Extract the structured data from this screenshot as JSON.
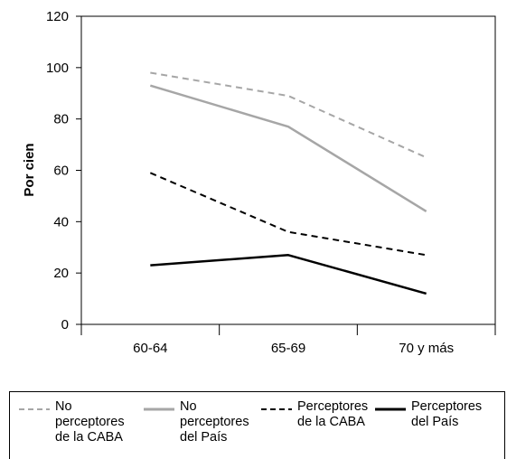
{
  "chart_data": {
    "type": "line",
    "categories": [
      "60-64",
      "65-69",
      "70 y más"
    ],
    "ylabel": "Por cien",
    "xlabel": "",
    "ylim": [
      0,
      120
    ],
    "yticks": [
      "0",
      "20",
      "40",
      "60",
      "80",
      "100",
      "120"
    ],
    "grid": false,
    "legend_position": "bottom",
    "series": [
      {
        "name": "No perceptores de la CABA",
        "values": [
          98,
          89,
          65
        ],
        "color": "#a6a6a6",
        "style": "dashed"
      },
      {
        "name": "No perceptores del País",
        "values": [
          93,
          77,
          44
        ],
        "color": "#a6a6a6",
        "style": "solid"
      },
      {
        "name": "Perceptores de la CABA",
        "values": [
          59,
          36,
          27
        ],
        "color": "#000000",
        "style": "dashed"
      },
      {
        "name": "Perceptores del País",
        "values": [
          23,
          27,
          12
        ],
        "color": "#000000",
        "style": "solid"
      }
    ]
  },
  "legend": {
    "items": [
      {
        "label": "No\nperceptores\nde la CABA"
      },
      {
        "label": "No\nperceptores\ndel País"
      },
      {
        "label": "Perceptores\nde la CABA"
      },
      {
        "label": "Perceptores\ndel País"
      }
    ]
  }
}
